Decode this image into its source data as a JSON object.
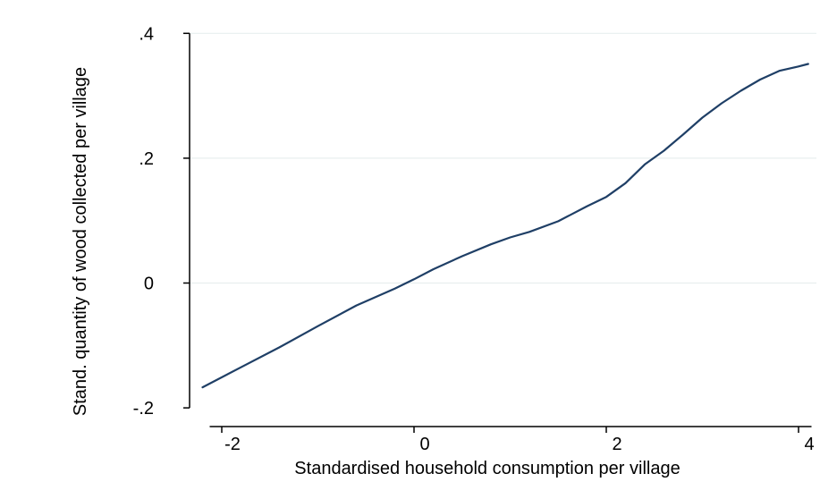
{
  "chart_data": {
    "type": "line",
    "title": "",
    "xlabel": "Standardised household consumption per village",
    "ylabel": "Stand. quantity of wood collected per village",
    "xlim": [
      -2.2,
      4.2
    ],
    "ylim": [
      -0.2,
      0.4
    ],
    "xticks": [
      -2,
      0,
      2,
      4
    ],
    "xtick_labels": [
      "-2",
      "0",
      "2",
      "4"
    ],
    "yticks": [
      -0.2,
      0,
      0.2,
      0.4
    ],
    "ytick_labels": [
      "-.2",
      "0",
      ".2",
      ".4"
    ],
    "grid": true,
    "legend": "none",
    "colors": {
      "line": "#1f3f66",
      "grid": "#e8efef",
      "axis": "#000000"
    },
    "series": [
      {
        "x": [
          -2.2,
          -1.8,
          -1.4,
          -1.0,
          -0.6,
          -0.2,
          0.0,
          0.2,
          0.5,
          0.8,
          1.0,
          1.2,
          1.5,
          1.8,
          2.0,
          2.2,
          2.4,
          2.6,
          2.8,
          3.0,
          3.2,
          3.4,
          3.6,
          3.8,
          4.0,
          4.1
        ],
        "y": [
          -0.167,
          -0.135,
          -0.103,
          -0.069,
          -0.036,
          -0.009,
          0.006,
          0.022,
          0.043,
          0.062,
          0.073,
          0.082,
          0.099,
          0.123,
          0.138,
          0.16,
          0.19,
          0.212,
          0.238,
          0.265,
          0.288,
          0.308,
          0.326,
          0.34,
          0.347,
          0.351
        ]
      }
    ]
  }
}
